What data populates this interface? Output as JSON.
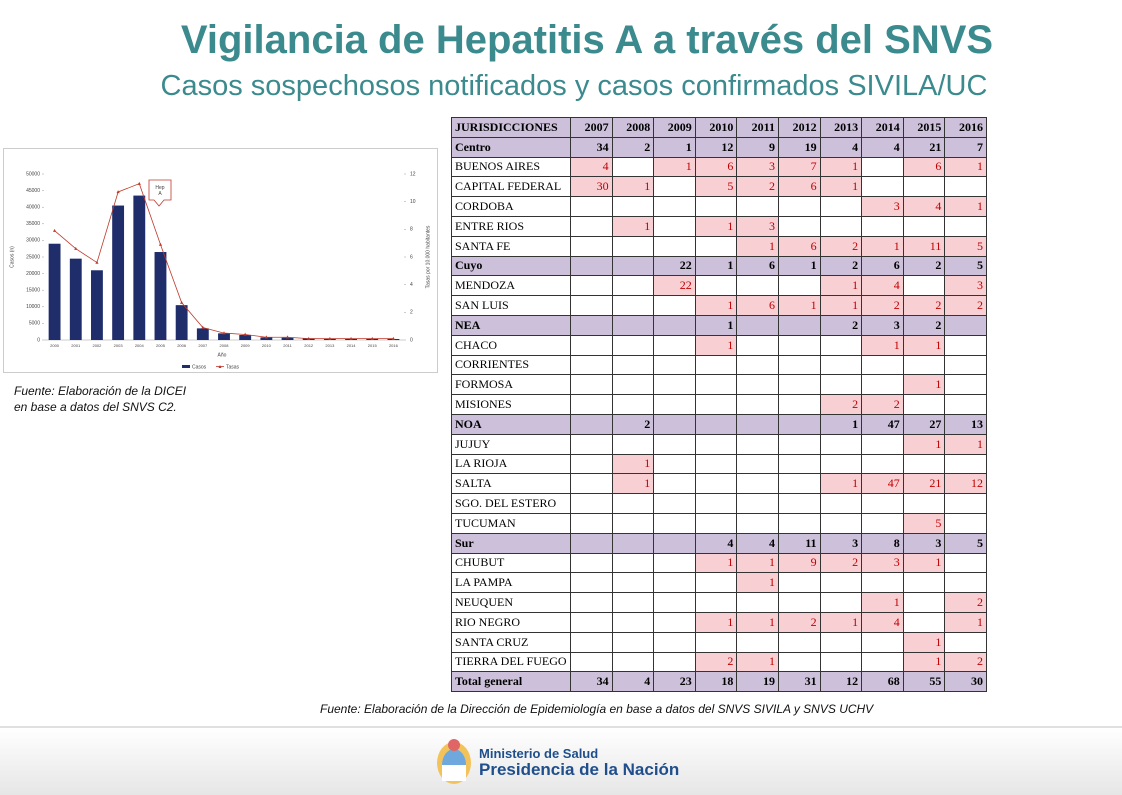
{
  "header": {
    "title": "Vigilancia de Hepatitis A a través del SNVS",
    "subtitle": "Casos sospechosos notificados y casos confirmados SIVILA/UC"
  },
  "chart_data": {
    "type": "bar-line",
    "annotation": "Hep A",
    "xlabel": "Año",
    "ylabel": "Casos (n)",
    "y2label": "Tasas por 10.000 habitantes",
    "categories": [
      "2000",
      "2001",
      "2002",
      "2003",
      "2004",
      "2005",
      "2006",
      "2007",
      "2008",
      "2009",
      "2010",
      "2011",
      "2012",
      "2013",
      "2014",
      "2015",
      "2016"
    ],
    "series": [
      {
        "name": "Casos",
        "type": "bar",
        "color": "#1f2d6b",
        "values": [
          29000,
          24500,
          21000,
          40500,
          43500,
          26500,
          10500,
          3500,
          2000,
          1500,
          800,
          700,
          500,
          400,
          300,
          300,
          300
        ]
      },
      {
        "name": "Tasas",
        "type": "line",
        "axis": "y2",
        "color": "#c0392b",
        "values": [
          7.9,
          6.6,
          5.6,
          10.7,
          11.3,
          6.9,
          2.7,
          0.9,
          0.5,
          0.4,
          0.2,
          0.2,
          0.1,
          0.1,
          0.1,
          0.1,
          0.1
        ]
      }
    ],
    "ylim": [
      0,
      50000
    ],
    "yticks": [
      0,
      5000,
      10000,
      15000,
      20000,
      25000,
      30000,
      35000,
      40000,
      45000,
      50000
    ],
    "y2lim": [
      0,
      12
    ],
    "y2ticks": [
      0,
      2,
      4,
      6,
      8,
      10,
      12
    ],
    "legend": "bottom"
  },
  "chart_source": [
    "Fuente: Elaboración de la DICEI",
    "en base a datos del SNVS C2."
  ],
  "table": {
    "columns": [
      "JURISDICCIONES",
      "2007",
      "2008",
      "2009",
      "2010",
      "2011",
      "2012",
      "2013",
      "2014",
      "2015",
      "2016"
    ],
    "groups": [
      {
        "name": "Centro",
        "values": [
          34,
          2,
          1,
          12,
          9,
          19,
          4,
          4,
          21,
          7
        ],
        "rows": [
          {
            "name": "BUENOS AIRES",
            "values": [
              4,
              null,
              1,
              6,
              3,
              7,
              1,
              null,
              6,
              1
            ]
          },
          {
            "name": "CAPITAL FEDERAL",
            "values": [
              30,
              1,
              null,
              5,
              2,
              6,
              1,
              null,
              null,
              null
            ]
          },
          {
            "name": "CORDOBA",
            "values": [
              null,
              null,
              null,
              null,
              null,
              null,
              null,
              3,
              4,
              1
            ]
          },
          {
            "name": "ENTRE RIOS",
            "values": [
              null,
              1,
              null,
              1,
              3,
              null,
              null,
              null,
              null,
              null
            ]
          },
          {
            "name": "SANTA FE",
            "values": [
              null,
              null,
              null,
              null,
              1,
              6,
              2,
              1,
              11,
              5
            ]
          }
        ]
      },
      {
        "name": "Cuyo",
        "values": [
          null,
          null,
          22,
          1,
          6,
          1,
          2,
          6,
          2,
          5
        ],
        "rows": [
          {
            "name": "MENDOZA",
            "values": [
              null,
              null,
              22,
              null,
              null,
              null,
              1,
              4,
              null,
              3
            ]
          },
          {
            "name": "SAN LUIS",
            "values": [
              null,
              null,
              null,
              1,
              6,
              1,
              1,
              2,
              2,
              2
            ]
          }
        ]
      },
      {
        "name": "NEA",
        "values": [
          null,
          null,
          null,
          1,
          null,
          null,
          2,
          3,
          2,
          null
        ],
        "rows": [
          {
            "name": "CHACO",
            "values": [
              null,
              null,
              null,
              1,
              null,
              null,
              null,
              1,
              1,
              null
            ]
          },
          {
            "name": "CORRIENTES",
            "values": [
              null,
              null,
              null,
              null,
              null,
              null,
              null,
              null,
              null,
              null
            ]
          },
          {
            "name": "FORMOSA",
            "values": [
              null,
              null,
              null,
              null,
              null,
              null,
              null,
              null,
              1,
              null
            ]
          },
          {
            "name": "MISIONES",
            "values": [
              null,
              null,
              null,
              null,
              null,
              null,
              2,
              2,
              null,
              null
            ]
          }
        ]
      },
      {
        "name": "NOA",
        "values": [
          null,
          2,
          null,
          null,
          null,
          null,
          1,
          47,
          27,
          13
        ],
        "rows": [
          {
            "name": "JUJUY",
            "values": [
              null,
              null,
              null,
              null,
              null,
              null,
              null,
              null,
              1,
              1
            ]
          },
          {
            "name": "LA RIOJA",
            "values": [
              null,
              1,
              null,
              null,
              null,
              null,
              null,
              null,
              null,
              null
            ]
          },
          {
            "name": "SALTA",
            "values": [
              null,
              1,
              null,
              null,
              null,
              null,
              1,
              47,
              21,
              12
            ]
          },
          {
            "name": "SGO. DEL ESTERO",
            "values": [
              null,
              null,
              null,
              null,
              null,
              null,
              null,
              null,
              null,
              null
            ]
          },
          {
            "name": "TUCUMAN",
            "values": [
              null,
              null,
              null,
              null,
              null,
              null,
              null,
              null,
              5,
              null
            ]
          }
        ]
      },
      {
        "name": "Sur",
        "values": [
          null,
          null,
          null,
          4,
          4,
          11,
          3,
          8,
          3,
          5
        ],
        "rows": [
          {
            "name": "CHUBUT",
            "values": [
              null,
              null,
              null,
              1,
              1,
              9,
              2,
              3,
              1,
              null
            ]
          },
          {
            "name": "LA PAMPA",
            "values": [
              null,
              null,
              null,
              null,
              1,
              null,
              null,
              null,
              null,
              null
            ]
          },
          {
            "name": "NEUQUEN",
            "values": [
              null,
              null,
              null,
              null,
              null,
              null,
              null,
              1,
              null,
              2
            ]
          },
          {
            "name": "RIO NEGRO",
            "values": [
              null,
              null,
              null,
              1,
              1,
              2,
              1,
              4,
              null,
              1
            ]
          },
          {
            "name": "SANTA CRUZ",
            "values": [
              null,
              null,
              null,
              null,
              null,
              null,
              null,
              null,
              1,
              null
            ]
          },
          {
            "name": "TIERRA DEL FUEGO",
            "values": [
              null,
              null,
              null,
              2,
              1,
              null,
              null,
              null,
              1,
              2
            ]
          }
        ]
      }
    ],
    "total": {
      "name": "Total general",
      "values": [
        34,
        4,
        23,
        18,
        19,
        31,
        12,
        68,
        55,
        30
      ]
    }
  },
  "table_source": "Fuente: Elaboración de la Dirección de Epidemiología en base a datos del SNVS SIVILA y SNVS UCHV",
  "footer": {
    "line1": "Ministerio de Salud",
    "line2": "Presidencia de la Nación"
  }
}
